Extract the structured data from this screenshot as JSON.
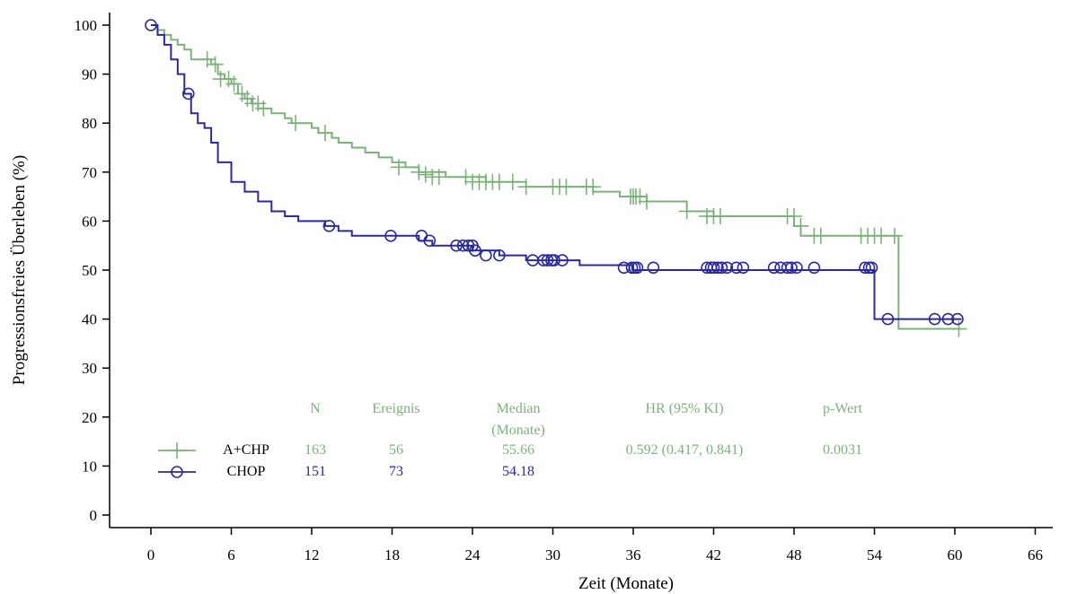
{
  "chart_data": {
    "type": "line",
    "step": true,
    "xlabel": "Zeit (Monate)",
    "ylabel": "Progressionsfreies Überleben (%)",
    "xlim": [
      -3,
      66
    ],
    "ylim": [
      0,
      100
    ],
    "xticks": [
      "0",
      "6",
      "12",
      "18",
      "24",
      "30",
      "36",
      "42",
      "48",
      "54",
      "60",
      "66"
    ],
    "yticks": [
      "0",
      "10",
      "20",
      "30",
      "40",
      "50",
      "60",
      "70",
      "80",
      "90",
      "100"
    ],
    "grid": false,
    "colors": {
      "A+CHP": "#7bb279",
      "CHOP": "#2b2a9c"
    },
    "series": [
      {
        "name": "A+CHP",
        "marker": "plus",
        "x": [
          0,
          0.5,
          1,
          1.5,
          2,
          2.5,
          3,
          4,
          4.5,
          5,
          5.5,
          6,
          6.5,
          7,
          7.5,
          8,
          8.5,
          9,
          10,
          10.5,
          11,
          12,
          12.5,
          13.5,
          14,
          15,
          16,
          17,
          18,
          19,
          20,
          22,
          25,
          28,
          33,
          35,
          37,
          40,
          42,
          48,
          48.5,
          55.8,
          60.5
        ],
        "y": [
          100,
          99,
          98,
          97,
          96,
          95,
          93,
          93,
          92,
          90,
          89,
          88,
          86,
          85,
          84,
          83,
          83,
          82,
          81,
          80,
          80,
          79,
          78,
          77,
          76,
          75,
          74,
          73,
          72,
          71,
          70,
          69,
          68,
          67,
          66,
          65,
          64,
          62,
          61,
          59,
          57,
          38,
          38
        ],
        "censored": [
          [
            4.2,
            93
          ],
          [
            4.8,
            92
          ],
          [
            5.2,
            89
          ],
          [
            5.8,
            89
          ],
          [
            6.2,
            88
          ],
          [
            6.8,
            86
          ],
          [
            7.2,
            85
          ],
          [
            7.6,
            84
          ],
          [
            8,
            84
          ],
          [
            8.4,
            83
          ],
          [
            10.8,
            80
          ],
          [
            13,
            78
          ],
          [
            18.5,
            71
          ],
          [
            20,
            70
          ],
          [
            20.5,
            69.5
          ],
          [
            21,
            69
          ],
          [
            21.5,
            69
          ],
          [
            23.5,
            69
          ],
          [
            24,
            68
          ],
          [
            24.5,
            68
          ],
          [
            25,
            68
          ],
          [
            25.5,
            68
          ],
          [
            26,
            68
          ],
          [
            27,
            68
          ],
          [
            28,
            67
          ],
          [
            30,
            67
          ],
          [
            30.5,
            67
          ],
          [
            31,
            67
          ],
          [
            32.5,
            67
          ],
          [
            33,
            67
          ],
          [
            35.8,
            65
          ],
          [
            36,
            65
          ],
          [
            36.2,
            65
          ],
          [
            36.5,
            65
          ],
          [
            37,
            64
          ],
          [
            40,
            62
          ],
          [
            41.5,
            61
          ],
          [
            42,
            61
          ],
          [
            42.5,
            61
          ],
          [
            47.5,
            61
          ],
          [
            48,
            61
          ],
          [
            48.5,
            59
          ],
          [
            49.5,
            57
          ],
          [
            50,
            57
          ],
          [
            53,
            57
          ],
          [
            53.5,
            57
          ],
          [
            54,
            57
          ],
          [
            54.5,
            57
          ],
          [
            55.5,
            57
          ],
          [
            60.3,
            38
          ]
        ]
      },
      {
        "name": "CHOP",
        "marker": "circle",
        "x": [
          0,
          0.5,
          1,
          1.5,
          2,
          2.5,
          3,
          3.5,
          4,
          4.5,
          5,
          6,
          7,
          8,
          9,
          10,
          11,
          12,
          13,
          14,
          15,
          18,
          20,
          21,
          22,
          24,
          26,
          28,
          30,
          32,
          36,
          48,
          53.5,
          54,
          60.5
        ],
        "y": [
          100,
          98,
          96,
          93,
          90,
          86,
          82,
          80,
          79,
          76,
          72,
          68,
          66,
          64,
          62,
          61,
          60,
          60,
          59,
          58,
          57,
          57,
          56,
          55,
          55,
          54,
          53,
          52,
          52,
          51,
          50,
          50,
          50,
          40,
          40
        ],
        "censored": [
          [
            0,
            100
          ],
          [
            2.8,
            86
          ],
          [
            13.3,
            59
          ],
          [
            17.9,
            57
          ],
          [
            20.2,
            57
          ],
          [
            20.8,
            56
          ],
          [
            22.8,
            55
          ],
          [
            23.3,
            55
          ],
          [
            23.7,
            55
          ],
          [
            24,
            55
          ],
          [
            24.2,
            54
          ],
          [
            25,
            53
          ],
          [
            26,
            53
          ],
          [
            28.5,
            52
          ],
          [
            29.3,
            52
          ],
          [
            29.6,
            52
          ],
          [
            29.9,
            52
          ],
          [
            30.1,
            52
          ],
          [
            30.7,
            52
          ],
          [
            35.3,
            50.5
          ],
          [
            35.9,
            50.5
          ],
          [
            36.1,
            50.5
          ],
          [
            36.3,
            50.5
          ],
          [
            37.5,
            50.5
          ],
          [
            41.5,
            50.5
          ],
          [
            41.8,
            50.5
          ],
          [
            42,
            50.5
          ],
          [
            42.3,
            50.5
          ],
          [
            42.6,
            50.5
          ],
          [
            43,
            50.5
          ],
          [
            43.7,
            50.5
          ],
          [
            44.2,
            50.5
          ],
          [
            46.5,
            50.5
          ],
          [
            47,
            50.5
          ],
          [
            47.5,
            50.5
          ],
          [
            47.8,
            50.5
          ],
          [
            48.2,
            50.5
          ],
          [
            49.5,
            50.5
          ],
          [
            53.3,
            50.5
          ],
          [
            53.6,
            50.5
          ],
          [
            53.8,
            50.5
          ],
          [
            55,
            40
          ],
          [
            58.5,
            40
          ],
          [
            59.5,
            40
          ],
          [
            60.2,
            40
          ]
        ]
      }
    ],
    "summary_table": {
      "headers": {
        "n": "N",
        "events": "Ereignis",
        "median_1": "Median",
        "median_2": "(Monate)",
        "hr": "HR (95% KI)",
        "p": "p-Wert"
      },
      "rows": [
        {
          "label": "A+CHP",
          "n": "163",
          "events": "56",
          "median": "55.66",
          "hr": "0.592 (0.417, 0.841)",
          "p": "0.0031"
        },
        {
          "label": "CHOP",
          "n": "151",
          "events": "73",
          "median": "54.18",
          "hr": "",
          "p": ""
        }
      ]
    }
  }
}
